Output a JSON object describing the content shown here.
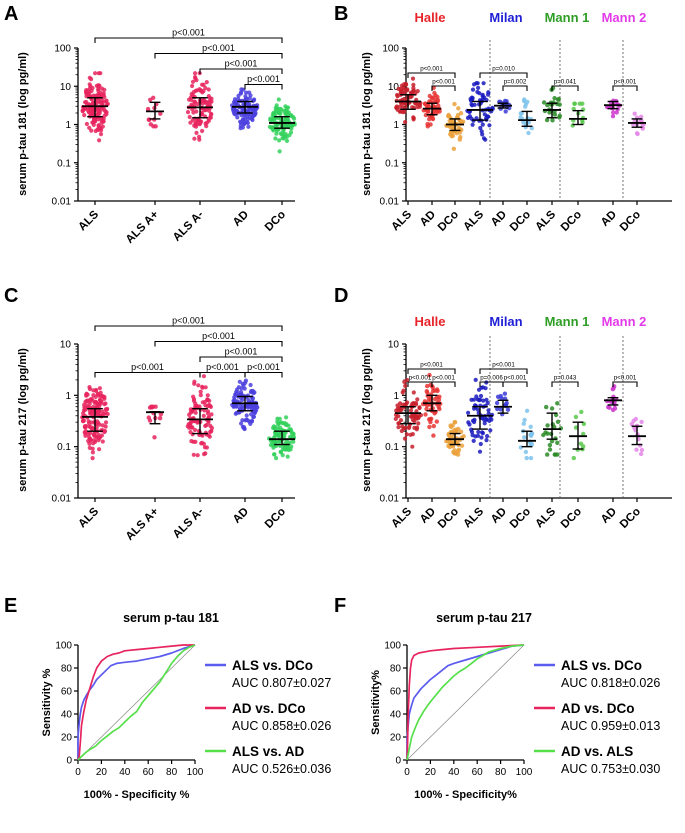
{
  "chart_data": [
    {
      "panel": "A",
      "type": "scatter",
      "ylabel": "serum p-tau 181 (log pg/ml)",
      "yscale": "log",
      "ylim": [
        0.01,
        100
      ],
      "yticks": [
        "0.01",
        "0.1",
        "1",
        "10",
        "100"
      ],
      "groups": [
        {
          "name": "ALS",
          "color": "#e8245e",
          "median": 3.0,
          "q1": 1.6,
          "q3": 5.0,
          "n": 160,
          "min": 0.3,
          "max": 22
        },
        {
          "name": "ALS A+",
          "color": "#e8245e",
          "median": 2.2,
          "q1": 1.4,
          "q3": 3.8,
          "n": 12,
          "min": 0.9,
          "max": 5
        },
        {
          "name": "ALS A-",
          "color": "#e8245e",
          "median": 2.8,
          "q1": 1.5,
          "q3": 5.0,
          "n": 100,
          "min": 0.4,
          "max": 22
        },
        {
          "name": "AD",
          "color": "#4b3fde",
          "median": 2.9,
          "q1": 2.0,
          "q3": 4.0,
          "n": 110,
          "min": 0.8,
          "max": 12
        },
        {
          "name": "DCo",
          "color": "#33d15c",
          "median": 1.1,
          "q1": 0.8,
          "q3": 1.6,
          "n": 110,
          "min": 0.12,
          "max": 4.5
        }
      ],
      "brackets": [
        {
          "from": 0,
          "to": 4,
          "label": "p<0.001"
        },
        {
          "from": 1,
          "to": 4,
          "label": "p<0.001"
        },
        {
          "from": 2,
          "to": 4,
          "label": "p<0.001"
        },
        {
          "from": 3,
          "to": 4,
          "label": "p<0.001"
        }
      ]
    },
    {
      "panel": "B",
      "type": "scatter",
      "ylabel": "serum p-tau 181 (log pg/ml)",
      "yscale": "log",
      "ylim": [
        0.01,
        100
      ],
      "yticks": [
        "0.01",
        "0.1",
        "1",
        "10",
        "100"
      ],
      "sites": [
        {
          "name": "Halle",
          "color": "#e8232a"
        },
        {
          "name": "Milan",
          "color": "#1f1fd6"
        },
        {
          "name": "Mann 1",
          "color": "#2e9e25"
        },
        {
          "name": "Mann 2",
          "color": "#e23ae8"
        }
      ],
      "groups": [
        {
          "name": "ALS",
          "site": 0,
          "color": "#c81e2a",
          "median": 4.0,
          "q1": 2.5,
          "q3": 6.0,
          "n": 70,
          "min": 0.8,
          "max": 22
        },
        {
          "name": "AD",
          "site": 0,
          "color": "#e83434",
          "median": 2.6,
          "q1": 1.8,
          "q3": 3.6,
          "n": 50,
          "min": 0.9,
          "max": 12
        },
        {
          "name": "DCo",
          "site": 0,
          "color": "#eba13c",
          "median": 1.0,
          "q1": 0.7,
          "q3": 1.4,
          "n": 50,
          "min": 0.12,
          "max": 3.5
        },
        {
          "name": "ALS",
          "site": 1,
          "color": "#1a1abf",
          "median": 2.4,
          "q1": 1.3,
          "q3": 4.0,
          "n": 60,
          "min": 0.4,
          "max": 12
        },
        {
          "name": "AD",
          "site": 1,
          "color": "#3b3bd9",
          "median": 3.1,
          "q1": 2.7,
          "q3": 3.6,
          "n": 14,
          "min": 2.2,
          "max": 6
        },
        {
          "name": "DCo",
          "site": 1,
          "color": "#7ec3ec",
          "median": 1.3,
          "q1": 0.9,
          "q3": 2.2,
          "n": 18,
          "min": 0.6,
          "max": 4.5
        },
        {
          "name": "ALS",
          "site": 2,
          "color": "#2a8a25",
          "median": 2.4,
          "q1": 1.5,
          "q3": 3.6,
          "n": 22,
          "min": 0.6,
          "max": 12
        },
        {
          "name": "DCo",
          "site": 2,
          "color": "#57c84a",
          "median": 1.4,
          "q1": 1.0,
          "q3": 2.3,
          "n": 12,
          "min": 0.5,
          "max": 3.5
        },
        {
          "name": "AD",
          "site": 3,
          "color": "#cc35cc",
          "median": 3.2,
          "q1": 2.6,
          "q3": 4.0,
          "n": 16,
          "min": 1.6,
          "max": 5.5
        },
        {
          "name": "DCo",
          "site": 3,
          "color": "#e486e8",
          "median": 1.1,
          "q1": 0.85,
          "q3": 1.4,
          "n": 14,
          "min": 0.55,
          "max": 2.0
        }
      ],
      "brackets": [
        {
          "from": 0,
          "to": 2,
          "label": "p<0.001"
        },
        {
          "from": 1,
          "to": 2,
          "label": "p<0.001"
        },
        {
          "from": 3,
          "to": 5,
          "label": "p=0.010"
        },
        {
          "from": 4,
          "to": 5,
          "label": "p=0.002"
        },
        {
          "from": 6,
          "to": 7,
          "label": "p=0.041"
        },
        {
          "from": 8,
          "to": 9,
          "label": "p<0.001"
        }
      ]
    },
    {
      "panel": "C",
      "type": "scatter",
      "ylabel": "serum p-tau 217 (log pg/ml)",
      "yscale": "log",
      "ylim": [
        0.01,
        10
      ],
      "yticks": [
        "0.01",
        "0.1",
        "1",
        "10"
      ],
      "groups": [
        {
          "name": "ALS",
          "color": "#e8245e",
          "median": 0.38,
          "q1": 0.2,
          "q3": 0.55,
          "n": 160,
          "min": 0.06,
          "max": 2.5
        },
        {
          "name": "ALS A+",
          "color": "#e8245e",
          "median": 0.47,
          "q1": 0.28,
          "q3": 0.48,
          "n": 12,
          "min": 0.12,
          "max": 0.6
        },
        {
          "name": "ALS A-",
          "color": "#e8245e",
          "median": 0.34,
          "q1": 0.18,
          "q3": 0.55,
          "n": 100,
          "min": 0.06,
          "max": 2.5
        },
        {
          "name": "AD",
          "color": "#4b3fde",
          "median": 0.7,
          "q1": 0.5,
          "q3": 0.95,
          "n": 110,
          "min": 0.15,
          "max": 2.5
        },
        {
          "name": "DCo",
          "color": "#33d15c",
          "median": 0.14,
          "q1": 0.11,
          "q3": 0.2,
          "n": 100,
          "min": 0.06,
          "max": 0.6
        }
      ],
      "brackets": [
        {
          "from": 0,
          "to": 4,
          "label": "p<0.001"
        },
        {
          "from": 1,
          "to": 4,
          "label": "p<0.001"
        },
        {
          "from": 2,
          "to": 4,
          "label": "p<0.001"
        },
        {
          "from": 0,
          "to": 2,
          "label": "p<0.001"
        },
        {
          "from": 2,
          "to": 3,
          "label": "p<0.001"
        },
        {
          "from": 3,
          "to": 4,
          "label": "p<0.001"
        }
      ]
    },
    {
      "panel": "D",
      "type": "scatter",
      "ylabel": "serum p-tau 217 (log pg/ml)",
      "yscale": "log",
      "ylim": [
        0.01,
        10
      ],
      "yticks": [
        "0.01",
        "0.1",
        "1",
        "10"
      ],
      "sites": [
        {
          "name": "Halle",
          "color": "#e8232a"
        },
        {
          "name": "Milan",
          "color": "#1f1fd6"
        },
        {
          "name": "Mann 1",
          "color": "#2e9e25"
        },
        {
          "name": "Mann 2",
          "color": "#e23ae8"
        }
      ],
      "groups": [
        {
          "name": "ALS",
          "site": 0,
          "color": "#c81e2a",
          "median": 0.45,
          "q1": 0.28,
          "q3": 0.6,
          "n": 70,
          "min": 0.1,
          "max": 2.5
        },
        {
          "name": "AD",
          "site": 0,
          "color": "#e83434",
          "median": 0.7,
          "q1": 0.5,
          "q3": 1.0,
          "n": 50,
          "min": 0.15,
          "max": 2.5
        },
        {
          "name": "DCo",
          "site": 0,
          "color": "#eba13c",
          "median": 0.14,
          "q1": 0.11,
          "q3": 0.18,
          "n": 50,
          "min": 0.07,
          "max": 0.3
        },
        {
          "name": "ALS",
          "site": 1,
          "color": "#1a1abf",
          "median": 0.4,
          "q1": 0.22,
          "q3": 0.6,
          "n": 60,
          "min": 0.07,
          "max": 2.0
        },
        {
          "name": "AD",
          "site": 1,
          "color": "#3b3bd9",
          "median": 0.6,
          "q1": 0.45,
          "q3": 0.8,
          "n": 14,
          "min": 0.3,
          "max": 1.5
        },
        {
          "name": "DCo",
          "site": 1,
          "color": "#7ec3ec",
          "median": 0.13,
          "q1": 0.1,
          "q3": 0.2,
          "n": 18,
          "min": 0.06,
          "max": 0.5
        },
        {
          "name": "ALS",
          "site": 2,
          "color": "#2a8a25",
          "median": 0.22,
          "q1": 0.14,
          "q3": 0.45,
          "n": 22,
          "min": 0.07,
          "max": 1.5
        },
        {
          "name": "DCo",
          "site": 2,
          "color": "#57c84a",
          "median": 0.16,
          "q1": 0.09,
          "q3": 0.3,
          "n": 10,
          "min": 0.06,
          "max": 0.5
        },
        {
          "name": "AD",
          "site": 3,
          "color": "#cc35cc",
          "median": 0.8,
          "q1": 0.65,
          "q3": 0.9,
          "n": 16,
          "min": 0.4,
          "max": 1.5
        },
        {
          "name": "DCo",
          "site": 3,
          "color": "#e486e8",
          "median": 0.16,
          "q1": 0.11,
          "q3": 0.25,
          "n": 14,
          "min": 0.07,
          "max": 0.4
        }
      ],
      "brackets": [
        {
          "from": 0,
          "to": 2,
          "label": "p<0.001"
        },
        {
          "from": 0,
          "to": 1,
          "label": "p<0.001"
        },
        {
          "from": 1,
          "to": 2,
          "label": "p<0.001"
        },
        {
          "from": 3,
          "to": 5,
          "label": "p<0.001"
        },
        {
          "from": 3,
          "to": 4,
          "label": "p=0.006"
        },
        {
          "from": 4,
          "to": 5,
          "label": "p<0.001"
        },
        {
          "from": 6,
          "to": 7,
          "label": "p=0.043"
        },
        {
          "from": 8,
          "to": 9,
          "label": "p<0.001"
        }
      ]
    },
    {
      "panel": "E",
      "type": "line",
      "title": "serum p-tau 181",
      "xlabel": "100% - Specificity %",
      "ylabel": "Sensitivity %",
      "xlim": [
        0,
        100
      ],
      "ylim": [
        0,
        100
      ],
      "xticks": [
        0,
        20,
        40,
        60,
        80,
        100
      ],
      "yticks": [
        0,
        20,
        40,
        60,
        80,
        100
      ],
      "series": [
        {
          "name": "ALS vs. DCo",
          "auc": "AUC 0.807±0.027",
          "color": "#5b5bf0",
          "x": [
            0,
            0,
            1,
            2,
            3,
            5,
            7,
            10,
            13,
            16,
            20,
            24,
            28,
            33,
            40,
            50,
            60,
            70,
            80,
            90,
            100
          ],
          "y": [
            0,
            20,
            32,
            40,
            46,
            52,
            56,
            61,
            65,
            70,
            74,
            78,
            82,
            84,
            85,
            86,
            88,
            90,
            93,
            97,
            100
          ]
        },
        {
          "name": "AD vs. DCo",
          "auc": "AUC 0.858±0.026",
          "color": "#e8245e",
          "x": [
            0,
            1,
            2,
            3,
            5,
            7,
            10,
            13,
            16,
            20,
            25,
            30,
            35,
            40,
            50,
            60,
            70,
            80,
            90,
            100
          ],
          "y": [
            0,
            3,
            15,
            30,
            42,
            52,
            62,
            72,
            80,
            86,
            90,
            92,
            93,
            95,
            96,
            97,
            98,
            99,
            100,
            100
          ]
        },
        {
          "name": "ALS vs. AD",
          "auc": "AUC 0.526±0.036",
          "color": "#55e04a",
          "x": [
            0,
            3,
            6,
            10,
            15,
            20,
            25,
            30,
            35,
            40,
            45,
            50,
            55,
            60,
            65,
            70,
            75,
            80,
            85,
            90,
            95,
            100
          ],
          "y": [
            0,
            3,
            6,
            9,
            12,
            17,
            21,
            25,
            28,
            33,
            38,
            42,
            50,
            56,
            62,
            68,
            76,
            84,
            90,
            95,
            98,
            100
          ]
        }
      ]
    },
    {
      "panel": "F",
      "type": "line",
      "title": "serum p-tau 217",
      "xlabel": "100% - Specificity%",
      "ylabel": "Sensitivity%",
      "xlim": [
        0,
        100
      ],
      "ylim": [
        0,
        100
      ],
      "xticks": [
        0,
        20,
        40,
        60,
        80,
        100
      ],
      "yticks": [
        0,
        20,
        40,
        60,
        80,
        100
      ],
      "series": [
        {
          "name": "ALS vs. DCo",
          "auc": "AUC 0.818±0.026",
          "color": "#5b5bf0",
          "x": [
            0,
            0,
            1,
            2,
            4,
            6,
            9,
            12,
            16,
            20,
            25,
            30,
            35,
            40,
            50,
            60,
            70,
            80,
            90,
            100
          ],
          "y": [
            0,
            18,
            30,
            40,
            48,
            54,
            58,
            62,
            66,
            70,
            74,
            78,
            82,
            84,
            87,
            90,
            93,
            96,
            99,
            100
          ]
        },
        {
          "name": "AD vs. DCo",
          "auc": "AUC 0.959±0.013",
          "color": "#e8245e",
          "x": [
            0,
            0.5,
            1,
            2,
            3,
            4,
            6,
            8,
            10,
            15,
            20,
            30,
            40,
            60,
            80,
            100
          ],
          "y": [
            0,
            15,
            40,
            65,
            80,
            87,
            91,
            92,
            93,
            94,
            95,
            96,
            97,
            98,
            99,
            100
          ]
        },
        {
          "name": "AD vs. ALS",
          "auc": "AUC 0.753±0.030",
          "color": "#55e04a",
          "x": [
            0,
            2,
            4,
            7,
            10,
            14,
            18,
            22,
            26,
            30,
            35,
            40,
            45,
            50,
            55,
            60,
            65,
            70,
            80,
            90,
            100
          ],
          "y": [
            0,
            10,
            20,
            28,
            35,
            42,
            48,
            53,
            58,
            63,
            68,
            73,
            77,
            80,
            84,
            88,
            91,
            94,
            97,
            99,
            100
          ]
        }
      ]
    }
  ]
}
